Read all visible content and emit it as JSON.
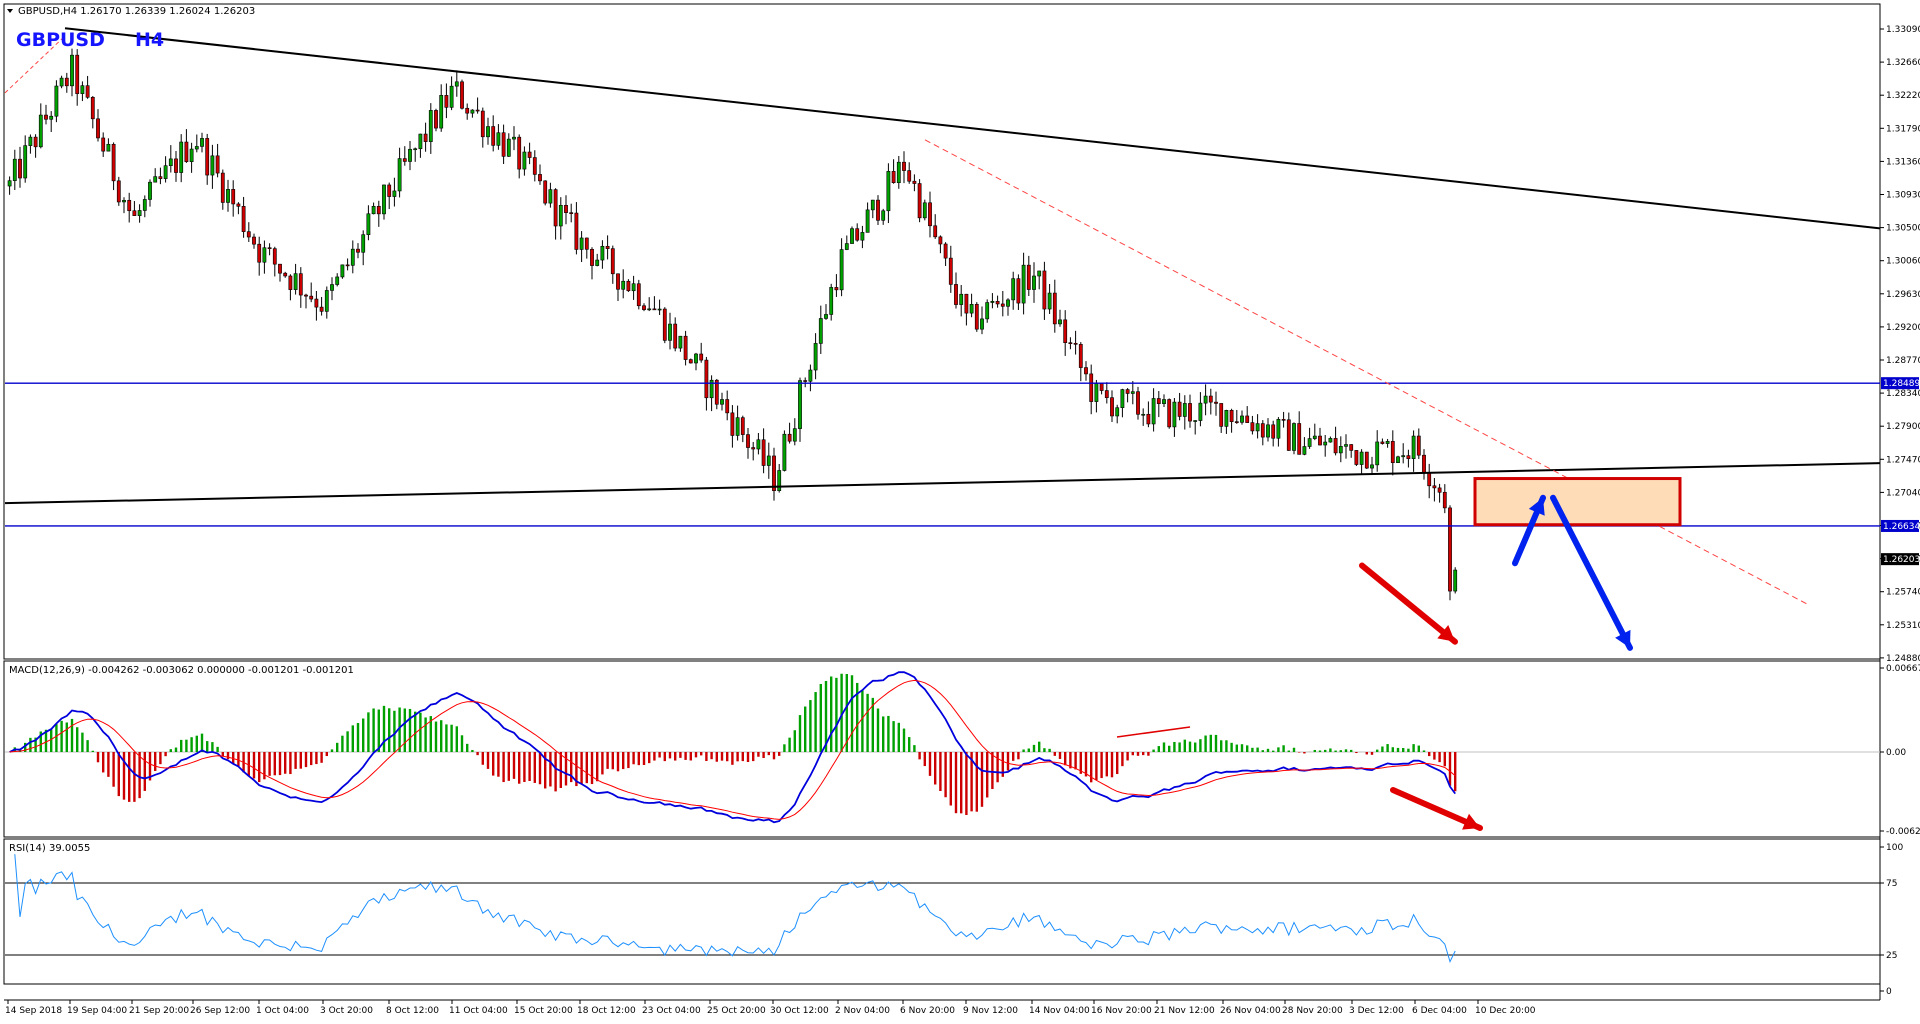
{
  "header": {
    "info": "GBPUSD,H4  1.26170 1.26339 1.26024 1.26203",
    "symbol": "GBPUSD",
    "timeframe": "H4"
  },
  "price_axis": {
    "ticks": [
      "1.33090",
      "1.32660",
      "1.32220",
      "1.31790",
      "1.31360",
      "1.30930",
      "1.30500",
      "1.30060",
      "1.29630",
      "1.29200",
      "1.28770",
      "1.28340",
      "1.27900",
      "1.27470",
      "1.27040",
      "1.26610",
      "1.26170",
      "1.25740",
      "1.25310",
      "1.24880"
    ],
    "boxed_labels": [
      "1.28489",
      "1.26634",
      "1.26203"
    ]
  },
  "macd": {
    "label": "MACD(12,26,9) -0.004262 -0.003062 0.000000 -0.001201 -0.001201",
    "ticks": [
      "0.006672",
      "0.00",
      "-0.006284"
    ]
  },
  "rsi": {
    "label": "RSI(14) 39.0055",
    "ticks": [
      "100",
      "75",
      "25",
      "0"
    ]
  },
  "time_axis": {
    "labels": [
      "14 Sep 2018",
      "19 Sep 04:00",
      "21 Sep 20:00",
      "26 Sep 12:00",
      "1 Oct 04:00",
      "3 Oct 20:00",
      "8 Oct 12:00",
      "11 Oct 04:00",
      "15 Oct 20:00",
      "18 Oct 12:00",
      "23 Oct 04:00",
      "25 Oct 20:00",
      "30 Oct 12:00",
      "2 Nov 04:00",
      "6 Nov 20:00",
      "9 Nov 12:00",
      "14 Nov 04:00",
      "16 Nov 20:00",
      "21 Nov 12:00",
      "26 Nov 04:00",
      "28 Nov 20:00",
      "3 Dec 12:00",
      "6 Dec 04:00",
      "10 Dec 20:00"
    ]
  },
  "colors": {
    "bull": "#00a000",
    "bear": "#cc0000",
    "wick": "#000000",
    "level": "#0000cc",
    "trendline": "#000000",
    "dashed_trend": "#ff4444",
    "zone_fill": "#ffdcb8",
    "zone_border": "#d00000",
    "arrow_down": "#e00000",
    "arrow_blue": "#0022ee",
    "macd_line": "#0000dd",
    "signal_line": "#ff0000",
    "rsi_line": "#1e90ff"
  },
  "chart_data": [
    {
      "type": "candlestick",
      "symbol": "GBPUSD",
      "timeframe": "H4",
      "ylim": [
        1.2488,
        1.3335
      ],
      "series": [
        {
          "x": "14 Sep 2018",
          "y": 1.3105
        },
        {
          "x": "19 Sep 04:00",
          "y": 1.3255
        },
        {
          "x": "21 Sep 20:00",
          "y": 1.306
        },
        {
          "x": "26 Sep 12:00",
          "y": 1.317
        },
        {
          "x": "1 Oct 04:00",
          "y": 1.302
        },
        {
          "x": "3 Oct 20:00",
          "y": 1.295
        },
        {
          "x": "8 Oct 12:00",
          "y": 1.31
        },
        {
          "x": "11 Oct 04:00",
          "y": 1.323
        },
        {
          "x": "15 Oct 20:00",
          "y": 1.314
        },
        {
          "x": "18 Oct 12:00",
          "y": 1.303
        },
        {
          "x": "23 Oct 04:00",
          "y": 1.296
        },
        {
          "x": "25 Oct 20:00",
          "y": 1.284
        },
        {
          "x": "30 Oct 12:00",
          "y": 1.2725
        },
        {
          "x": "2 Nov 04:00",
          "y": 1.3005
        },
        {
          "x": "6 Nov 20:00",
          "y": 1.3135
        },
        {
          "x": "9 Nov 12:00",
          "y": 1.2925
        },
        {
          "x": "14 Nov 04:00",
          "y": 1.299
        },
        {
          "x": "16 Nov 20:00",
          "y": 1.283
        },
        {
          "x": "21 Nov 12:00",
          "y": 1.281
        },
        {
          "x": "26 Nov 04:00",
          "y": 1.2815
        },
        {
          "x": "28 Nov 20:00",
          "y": 1.278
        },
        {
          "x": "3 Dec 12:00",
          "y": 1.276
        },
        {
          "x": "6 Dec 04:00",
          "y": 1.2765
        },
        {
          "x": "10 Dec 20:00",
          "y": 1.262
        }
      ],
      "horizontal_levels": [
        1.28489,
        1.26634
      ],
      "last_price": 1.26203
    },
    {
      "type": "line",
      "name": "MACD(12,26,9)",
      "ylim": [
        -0.006284,
        0.006672
      ],
      "zero_line": 0.0
    },
    {
      "type": "line",
      "name": "RSI(14)",
      "ylim": [
        0,
        100
      ],
      "levels": [
        25,
        75
      ],
      "last_value": 39.0055
    }
  ]
}
